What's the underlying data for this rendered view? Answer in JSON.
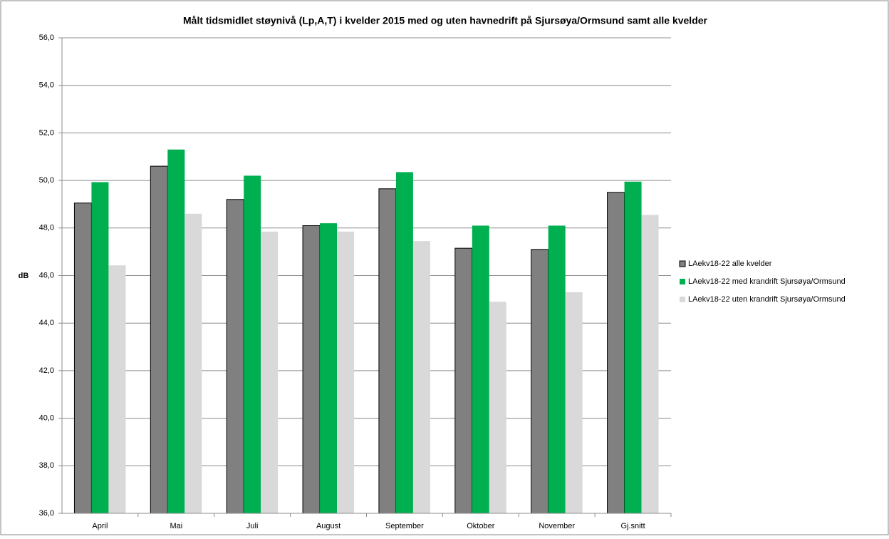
{
  "chart_data": {
    "type": "bar",
    "title": "Målt tidsmidlet støynivå (Lp,A,T) i kvelder  2015 med og uten havnedrift på Sjursøya/Ormsund samt alle kvelder",
    "y_label": "dB",
    "categories": [
      "April",
      "Mai",
      "Juli",
      "August",
      "September",
      "Oktober",
      "November",
      "Gj.snitt"
    ],
    "series": [
      {
        "name": "LAekv18-22 alle kvelder",
        "color": "#808080",
        "values": [
          49.05,
          50.6,
          49.2,
          48.1,
          49.65,
          47.15,
          47.1,
          49.5
        ]
      },
      {
        "name": "LAekv18-22  med krandrift Sjursøya/Ormsund",
        "color": "#00b050",
        "values": [
          49.93,
          51.3,
          50.2,
          48.2,
          50.35,
          48.1,
          48.1,
          49.95
        ]
      },
      {
        "name": "LAekv18-22  uten krandrift Sjursøya/Ormsund",
        "color": "#d9d9d9",
        "values": [
          46.43,
          48.6,
          47.85,
          47.85,
          47.45,
          44.9,
          45.3,
          48.55
        ]
      }
    ],
    "ylim": [
      36,
      56
    ],
    "yticks": [
      {
        "value": 36,
        "label": "36,0"
      },
      {
        "value": 38,
        "label": "38,0"
      },
      {
        "value": 40,
        "label": "40,0"
      },
      {
        "value": 42,
        "label": "42,0"
      },
      {
        "value": 44,
        "label": "44,0"
      },
      {
        "value": 46,
        "label": "46,0"
      },
      {
        "value": 48,
        "label": "48,0"
      },
      {
        "value": 50,
        "label": "50,0"
      },
      {
        "value": 52,
        "label": "52,0"
      },
      {
        "value": 54,
        "label": "54,0"
      },
      {
        "value": 56,
        "label": "56,0"
      }
    ],
    "grid": true,
    "legend": "right"
  }
}
